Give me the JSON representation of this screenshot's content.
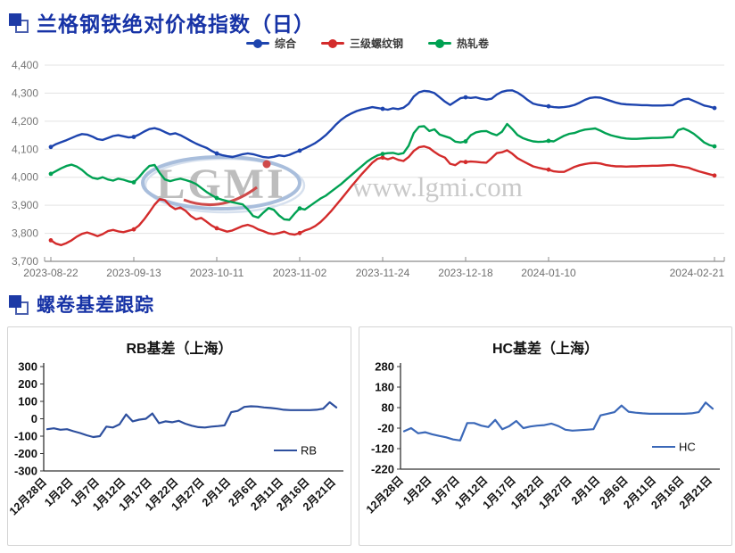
{
  "colors": {
    "title_blue": "#1733a6",
    "grid": "#e3e3e3",
    "axis_gray": "#9b9b9b"
  },
  "section1": {
    "title": "兰格钢铁绝对价格指数（日）"
  },
  "section2": {
    "title": "螺卷基差跟踪"
  },
  "watermark": {
    "logo_text": "LGMI",
    "url_text": "www.lgmi.com"
  },
  "chart_data": [
    {
      "type": "line",
      "title": "兰格钢铁绝对价格指数（日）",
      "ylim": [
        3700,
        4400
      ],
      "ytick_labels": [
        "4,400",
        "4,300",
        "4,200",
        "4,100",
        "4,000",
        "3,900",
        "3,800",
        "3,700"
      ],
      "grid": true,
      "legend_position": "top",
      "xticks": [
        {
          "i": 0,
          "label": "2023-08-22"
        },
        {
          "i": 16,
          "label": "2023-09-13"
        },
        {
          "i": 32,
          "label": "2023-10-11"
        },
        {
          "i": 48,
          "label": "2023-11-02"
        },
        {
          "i": 64,
          "label": "2023-11-24"
        },
        {
          "i": 80,
          "label": "2023-12-18"
        },
        {
          "i": 96,
          "label": "2024-01-10"
        },
        {
          "i": 128,
          "label": "2024-02-21"
        }
      ],
      "series": [
        {
          "name": "综合",
          "color": "#1d44ae",
          "values": [
            4108,
            4118,
            4125,
            4132,
            4140,
            4148,
            4154,
            4152,
            4145,
            4136,
            4133,
            4140,
            4147,
            4150,
            4146,
            4142,
            4144,
            4152,
            4163,
            4172,
            4175,
            4170,
            4161,
            4153,
            4157,
            4150,
            4140,
            4130,
            4120,
            4112,
            4105,
            4094,
            4085,
            4079,
            4075,
            4072,
            4077,
            4082,
            4085,
            4082,
            4077,
            4072,
            4070,
            4073,
            4078,
            4075,
            4080,
            4088,
            4095,
            4103,
            4112,
            4122,
            4135,
            4150,
            4168,
            4188,
            4205,
            4218,
            4228,
            4236,
            4242,
            4246,
            4250,
            4247,
            4244,
            4241,
            4246,
            4243,
            4248,
            4262,
            4288,
            4303,
            4308,
            4306,
            4300,
            4285,
            4270,
            4258,
            4270,
            4282,
            4285,
            4283,
            4285,
            4280,
            4277,
            4280,
            4295,
            4305,
            4309,
            4310,
            4302,
            4290,
            4275,
            4263,
            4258,
            4255,
            4253,
            4250,
            4249,
            4250,
            4253,
            4258,
            4266,
            4276,
            4283,
            4285,
            4284,
            4278,
            4272,
            4266,
            4262,
            4260,
            4259,
            4258,
            4257,
            4257,
            4256,
            4256,
            4256,
            4257,
            4257,
            4270,
            4278,
            4280,
            4272,
            4264,
            4256,
            4252,
            4247
          ]
        },
        {
          "name": "三级螺纹钢",
          "color": "#d32b2b",
          "values": [
            3775,
            3763,
            3758,
            3765,
            3775,
            3788,
            3798,
            3803,
            3797,
            3790,
            3797,
            3808,
            3812,
            3807,
            3804,
            3809,
            3814,
            3828,
            3850,
            3875,
            3902,
            3922,
            3918,
            3898,
            3886,
            3892,
            3880,
            3862,
            3850,
            3855,
            3842,
            3828,
            3818,
            3812,
            3806,
            3810,
            3818,
            3826,
            3830,
            3824,
            3814,
            3808,
            3800,
            3797,
            3801,
            3806,
            3798,
            3795,
            3801,
            3810,
            3816,
            3826,
            3840,
            3858,
            3878,
            3900,
            3922,
            3945,
            3968,
            3990,
            4012,
            4032,
            4052,
            4066,
            4070,
            4064,
            4070,
            4062,
            4058,
            4072,
            4094,
            4107,
            4110,
            4104,
            4090,
            4078,
            4070,
            4048,
            4043,
            4056,
            4054,
            4056,
            4055,
            4053,
            4052,
            4068,
            4086,
            4089,
            4096,
            4084,
            4068,
            4058,
            4048,
            4039,
            4034,
            4030,
            4027,
            4021,
            4019,
            4019,
            4028,
            4037,
            4043,
            4047,
            4050,
            4051,
            4049,
            4044,
            4041,
            4039,
            4039,
            4038,
            4039,
            4039,
            4040,
            4040,
            4041,
            4041,
            4042,
            4043,
            4044,
            4040,
            4037,
            4034,
            4027,
            4021,
            4016,
            4011,
            4006
          ]
        },
        {
          "name": "热轧卷",
          "color": "#00a152",
          "values": [
            4012,
            4022,
            4032,
            4040,
            4045,
            4038,
            4026,
            4010,
            3998,
            3994,
            4000,
            3992,
            3988,
            3995,
            3991,
            3985,
            3982,
            4000,
            4022,
            4040,
            4044,
            4015,
            3992,
            3986,
            3991,
            3995,
            3990,
            3984,
            3976,
            3962,
            3948,
            3936,
            3926,
            3920,
            3915,
            3911,
            3907,
            3903,
            3885,
            3862,
            3856,
            3874,
            3890,
            3884,
            3864,
            3850,
            3848,
            3870,
            3889,
            3885,
            3898,
            3911,
            3924,
            3934,
            3948,
            3962,
            3976,
            3992,
            4008,
            4024,
            4040,
            4056,
            4068,
            4078,
            4083,
            4086,
            4087,
            4082,
            4086,
            4112,
            4158,
            4180,
            4182,
            4165,
            4171,
            4152,
            4146,
            4140,
            4127,
            4124,
            4128,
            4150,
            4160,
            4164,
            4165,
            4156,
            4150,
            4162,
            4190,
            4172,
            4151,
            4140,
            4133,
            4128,
            4126,
            4127,
            4130,
            4128,
            4138,
            4148,
            4155,
            4158,
            4165,
            4170,
            4172,
            4174,
            4166,
            4157,
            4150,
            4145,
            4141,
            4138,
            4137,
            4137,
            4138,
            4139,
            4140,
            4140,
            4141,
            4142,
            4143,
            4168,
            4174,
            4166,
            4155,
            4140,
            4124,
            4115,
            4110
          ]
        }
      ]
    },
    {
      "type": "line",
      "title": "RB基差（上海）",
      "ylim": [
        -300,
        300
      ],
      "ytick_labels": [
        "300",
        "200",
        "100",
        "0",
        "-100",
        "-200",
        "-300"
      ],
      "grid": false,
      "xticks": [
        {
          "i": 0,
          "label": "12月28日"
        },
        {
          "i": 4,
          "label": "1月2日"
        },
        {
          "i": 8,
          "label": "1月7日"
        },
        {
          "i": 12,
          "label": "1月12日"
        },
        {
          "i": 16,
          "label": "1月17日"
        },
        {
          "i": 20,
          "label": "1月22日"
        },
        {
          "i": 24,
          "label": "1月27日"
        },
        {
          "i": 28,
          "label": "2月1日"
        },
        {
          "i": 32,
          "label": "2月6日"
        },
        {
          "i": 36,
          "label": "2月11日"
        },
        {
          "i": 40,
          "label": "2月16日"
        },
        {
          "i": 44,
          "label": "2月21日"
        }
      ],
      "series": [
        {
          "name": "RB",
          "color": "#2d4f9e",
          "values": [
            -60,
            -55,
            -63,
            -60,
            -72,
            -82,
            -95,
            -105,
            -100,
            -45,
            -50,
            -32,
            25,
            -15,
            -5,
            0,
            30,
            -25,
            -15,
            -20,
            -12,
            -28,
            -40,
            -48,
            -50,
            -45,
            -42,
            -38,
            38,
            45,
            68,
            72,
            70,
            65,
            62,
            58,
            52,
            50,
            50,
            50,
            50,
            52,
            58,
            95,
            65
          ]
        }
      ]
    },
    {
      "type": "line",
      "title": "HC基差（上海）",
      "ylim": [
        -220,
        280
      ],
      "ytick_labels": [
        "280",
        "180",
        "80",
        "-20",
        "-120",
        "-220"
      ],
      "grid": false,
      "xticks": [
        {
          "i": 0,
          "label": "12月28日"
        },
        {
          "i": 4,
          "label": "1月2日"
        },
        {
          "i": 8,
          "label": "1月7日"
        },
        {
          "i": 12,
          "label": "1月12日"
        },
        {
          "i": 16,
          "label": "1月17日"
        },
        {
          "i": 20,
          "label": "1月22日"
        },
        {
          "i": 24,
          "label": "1月27日"
        },
        {
          "i": 28,
          "label": "2月1日"
        },
        {
          "i": 32,
          "label": "2月6日"
        },
        {
          "i": 36,
          "label": "2月11日"
        },
        {
          "i": 40,
          "label": "2月16日"
        },
        {
          "i": 44,
          "label": "2月21日"
        }
      ],
      "series": [
        {
          "name": "HC",
          "color": "#3b68b8",
          "values": [
            -35,
            -20,
            -45,
            -40,
            -50,
            -58,
            -65,
            -75,
            -80,
            5,
            5,
            -8,
            -15,
            20,
            -25,
            -10,
            15,
            -20,
            -12,
            -8,
            -5,
            2,
            -10,
            -28,
            -32,
            -30,
            -28,
            -25,
            42,
            50,
            58,
            90,
            60,
            55,
            52,
            50,
            50,
            50,
            50,
            50,
            50,
            52,
            58,
            105,
            75
          ]
        }
      ]
    }
  ]
}
